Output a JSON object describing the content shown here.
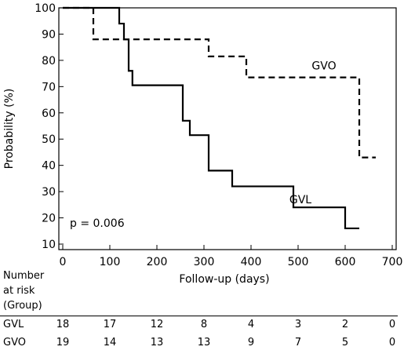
{
  "chart_data": {
    "type": "line",
    "title": "",
    "xlabel": "Follow-up (days)",
    "ylabel": "Probability (%)",
    "xlim": [
      0,
      700
    ],
    "ylim": [
      10,
      100
    ],
    "xticks": [
      0,
      100,
      200,
      300,
      400,
      500,
      600,
      700
    ],
    "yticks": [
      10,
      20,
      30,
      40,
      50,
      60,
      70,
      80,
      90,
      100
    ],
    "series": [
      {
        "name": "GVL",
        "style": "solid",
        "color": "#000000",
        "steps": [
          [
            0,
            100
          ],
          [
            120,
            94
          ],
          [
            130,
            88
          ],
          [
            140,
            76
          ],
          [
            148,
            70.5
          ],
          [
            255,
            57
          ],
          [
            270,
            51.5
          ],
          [
            310,
            38
          ],
          [
            360,
            32
          ],
          [
            490,
            24
          ],
          [
            600,
            16
          ],
          [
            630,
            16
          ]
        ]
      },
      {
        "name": "GVO",
        "style": "dashed",
        "color": "#000000",
        "steps": [
          [
            0,
            100
          ],
          [
            65,
            88
          ],
          [
            310,
            81.5
          ],
          [
            390,
            73.5
          ],
          [
            630,
            43
          ],
          [
            665,
            43
          ]
        ]
      }
    ],
    "annotations": [
      {
        "text": "p = 0.006",
        "x": 15,
        "y": 18
      }
    ]
  },
  "risk_table": {
    "header": "Number\nat risk\n(Group)",
    "rows": [
      {
        "label": "GVL",
        "values": [
          "18",
          "17",
          "12",
          "8",
          "4",
          "3",
          "2",
          "0"
        ]
      },
      {
        "label": "GVO",
        "values": [
          "19",
          "14",
          "13",
          "13",
          "9",
          "7",
          "5",
          "0"
        ]
      }
    ]
  }
}
